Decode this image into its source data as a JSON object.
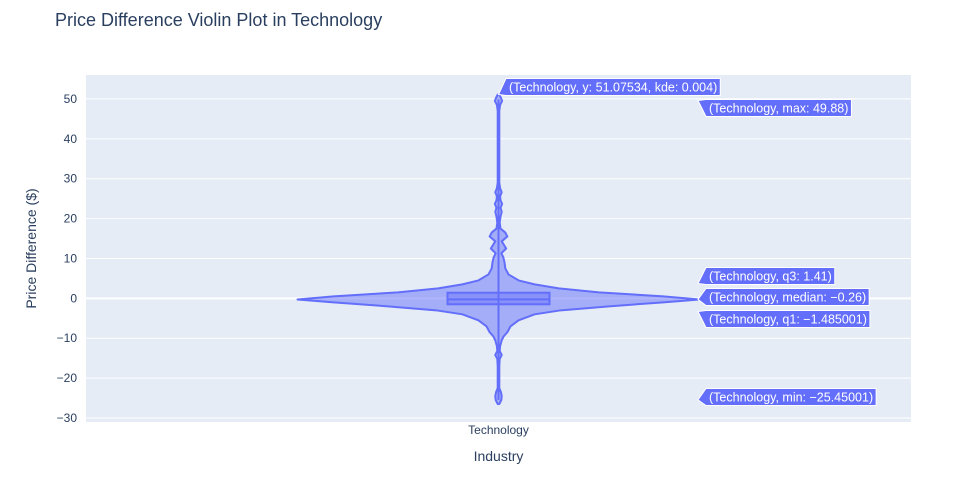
{
  "chart_data": {
    "type": "violin",
    "title": "Price Difference Violin Plot in Technology",
    "xlabel": "Industry",
    "ylabel": "Price Difference ($)",
    "categories": [
      "Technology"
    ],
    "ylim": [
      -31,
      56
    ],
    "y_ticks": [
      -30,
      -20,
      -10,
      0,
      10,
      20,
      30,
      40,
      50
    ],
    "grid": true,
    "series": [
      {
        "category": "Technology",
        "color": "#636efa",
        "stats": {
          "max": 49.88,
          "q3": 1.41,
          "median": -0.26,
          "q1": -1.485001,
          "min": -25.45001
        },
        "kde_peak_point": {
          "y": 51.07534,
          "kde": 0.004
        },
        "density_profile": [
          [
            -26.5,
            0.004
          ],
          [
            -25.5,
            0.014
          ],
          [
            -24.5,
            0.016
          ],
          [
            -23.5,
            0.012
          ],
          [
            -22.5,
            0.004
          ],
          [
            -21,
            0.004
          ],
          [
            -19,
            0.004
          ],
          [
            -17,
            0.004
          ],
          [
            -15.2,
            0.006
          ],
          [
            -14.2,
            0.016
          ],
          [
            -13.2,
            0.006
          ],
          [
            -12,
            0.008
          ],
          [
            -10.5,
            0.016
          ],
          [
            -9.5,
            0.026
          ],
          [
            -8.5,
            0.044
          ],
          [
            -7,
            0.06
          ],
          [
            -5.5,
            0.1
          ],
          [
            -4,
            0.18
          ],
          [
            -3,
            0.31
          ],
          [
            -2,
            0.55
          ],
          [
            -1,
            0.82
          ],
          [
            -0.3,
            1.0
          ],
          [
            0.5,
            0.82
          ],
          [
            1.5,
            0.5
          ],
          [
            2.5,
            0.3
          ],
          [
            3.5,
            0.18
          ],
          [
            4.5,
            0.1
          ],
          [
            6,
            0.05
          ],
          [
            7.5,
            0.034
          ],
          [
            9,
            0.03
          ],
          [
            10.3,
            0.024
          ],
          [
            11.3,
            0.014
          ],
          [
            12.5,
            0.038
          ],
          [
            13.5,
            0.026
          ],
          [
            14.3,
            0.016
          ],
          [
            15.5,
            0.044
          ],
          [
            16.5,
            0.034
          ],
          [
            17.5,
            0.01
          ],
          [
            19,
            0.006
          ],
          [
            20.5,
            0.01
          ],
          [
            21.7,
            0.016
          ],
          [
            22.7,
            0.01
          ],
          [
            23.7,
            0.018
          ],
          [
            24.6,
            0.01
          ],
          [
            25.6,
            0.008
          ],
          [
            26.6,
            0.016
          ],
          [
            27.6,
            0.008
          ],
          [
            29,
            0.004
          ],
          [
            32,
            0.004
          ],
          [
            36,
            0.004
          ],
          [
            40,
            0.004
          ],
          [
            44,
            0.004
          ],
          [
            47,
            0.004
          ],
          [
            48.5,
            0.008
          ],
          [
            49.5,
            0.018
          ],
          [
            50.3,
            0.012
          ],
          [
            51.07534,
            0.004
          ]
        ]
      }
    ],
    "annotations": [
      "(Technology, y: 51.07534, kde: 0.004)",
      "(Technology, max: 49.88)",
      "(Technology, q3: 1.41)",
      "(Technology, median: −0.26)",
      "(Technology, q1: −1.485001)",
      "(Technology, min: −25.45001)"
    ]
  }
}
